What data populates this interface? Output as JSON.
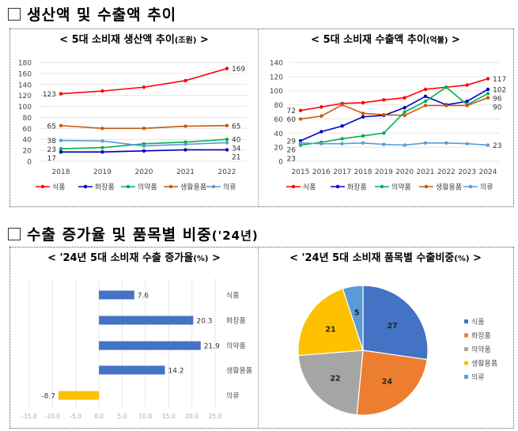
{
  "section1": {
    "title": "생산액 및 수출액 추이"
  },
  "section2": {
    "title": "수출 증가율 및 품목별 비중",
    "title_suffix": "('24년)"
  },
  "chart_data": [
    {
      "type": "line",
      "title": "< 5대 소비재 생산액 추이",
      "unit": "(조원)",
      "title_end": ">",
      "x": [
        "2018",
        "2019",
        "2020",
        "2021",
        "2022"
      ],
      "yticks": [
        "0",
        "20",
        "40",
        "60",
        "80",
        "100",
        "120",
        "140",
        "160",
        "180"
      ],
      "ylim": [
        0,
        180
      ],
      "grid": true,
      "legend": "bottom",
      "series": [
        {
          "name": "식품",
          "color": "#ff0000",
          "values": [
            123,
            128,
            135,
            147,
            169
          ]
        },
        {
          "name": "화장품",
          "color": "#0000c0",
          "values": [
            17,
            17,
            19,
            21,
            21
          ]
        },
        {
          "name": "의약품",
          "color": "#00b050",
          "values": [
            23,
            25,
            32,
            35,
            40
          ]
        },
        {
          "name": "생활용품",
          "color": "#c55a11",
          "values": [
            65,
            60,
            60,
            64,
            65
          ]
        },
        {
          "name": "의류",
          "color": "#5b9bd5",
          "values": [
            38,
            37,
            28,
            31,
            34
          ]
        }
      ]
    },
    {
      "type": "line",
      "title": "< 5대 소비재 수출액 추이",
      "unit": "(억불)",
      "title_end": ">",
      "x": [
        "2015",
        "2016",
        "2017",
        "2018",
        "2019",
        "2020",
        "2021",
        "2022",
        "2023",
        "2024"
      ],
      "yticks": [
        "0",
        "20",
        "40",
        "60",
        "80",
        "100",
        "120",
        "140"
      ],
      "ylim": [
        0,
        140
      ],
      "grid": true,
      "legend": "bottom",
      "series": [
        {
          "name": "식품",
          "color": "#ff0000",
          "values": [
            72,
            77,
            82,
            83,
            87,
            90,
            102,
            105,
            108,
            117
          ]
        },
        {
          "name": "화장품",
          "color": "#0000c0",
          "values": [
            29,
            42,
            50,
            63,
            65,
            76,
            92,
            80,
            85,
            102
          ]
        },
        {
          "name": "의약품",
          "color": "#00b050",
          "values": [
            23,
            27,
            32,
            36,
            40,
            70,
            85,
            105,
            80,
            96
          ]
        },
        {
          "name": "생활용품",
          "color": "#c55a11",
          "values": [
            60,
            64,
            80,
            68,
            66,
            65,
            79,
            79,
            79,
            90
          ]
        },
        {
          "name": "의류",
          "color": "#5b9bd5",
          "values": [
            26,
            25,
            25,
            26,
            24,
            23,
            26,
            26,
            25,
            23
          ]
        }
      ]
    },
    {
      "type": "bar",
      "orientation": "horizontal",
      "title": "< '24년 5대 소비재 수출 증가율",
      "unit": "(%)",
      "title_end": ">",
      "categories": [
        "식품",
        "화장품",
        "의약품",
        "생활용품",
        "의류"
      ],
      "values": [
        7.6,
        20.3,
        21.9,
        14.2,
        -8.7
      ],
      "labels": [
        "7.6",
        "20.3",
        "21.9",
        "14.2",
        "-8.7"
      ],
      "xticks": [
        "-15.0",
        "-10.0",
        "-5.0",
        "0.0",
        "5.0",
        "10.0",
        "15.0",
        "20.0",
        "25.0"
      ],
      "xlim": [
        -15,
        25
      ],
      "positive_color": "#4472c4",
      "negative_color": "#ffc000",
      "grid": true
    },
    {
      "type": "pie",
      "title": "< '24년 5대 소비재 품목별 수출비중",
      "unit": "(%)",
      "title_end": ">",
      "categories": [
        "식품",
        "화장품",
        "의약품",
        "생활용품",
        "의류"
      ],
      "values": [
        27,
        24,
        22,
        21,
        5
      ],
      "labels": [
        "27",
        "24",
        "22",
        "21",
        "5"
      ],
      "colors": [
        "#4472c4",
        "#ed7d31",
        "#a5a5a5",
        "#ffc000",
        "#5b9bd5"
      ],
      "legend": "right"
    }
  ]
}
